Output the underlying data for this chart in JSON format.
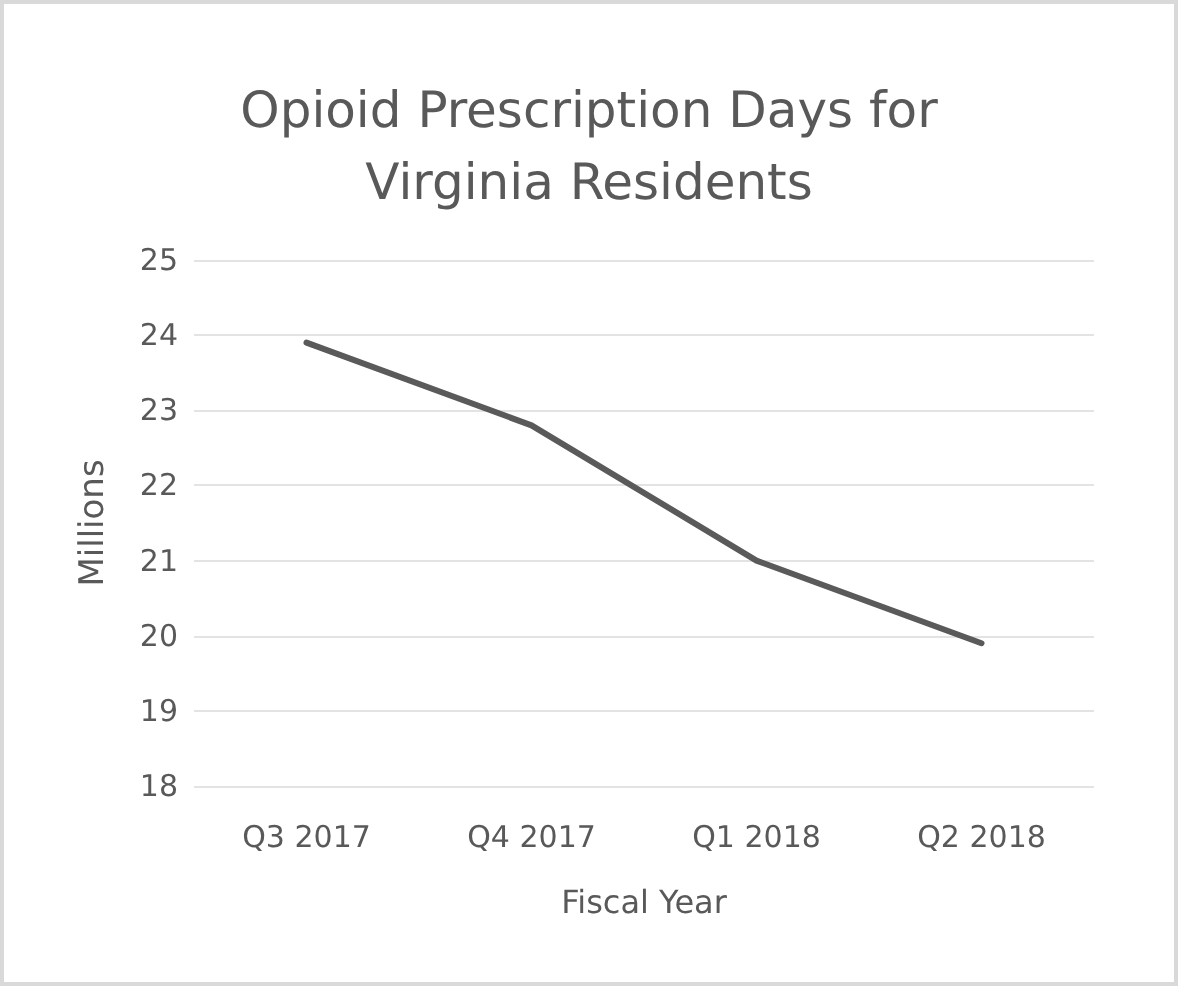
{
  "chart_data": {
    "type": "line",
    "title": "Opioid Prescription Days for\nVirginia Residents",
    "xlabel": "Fiscal Year",
    "ylabel": "Millions",
    "categories": [
      "Q3 2017",
      "Q4 2017",
      "Q1 2018",
      "Q2 2018"
    ],
    "series": [
      {
        "color": "#5a5a5a",
        "values": [
          23.9,
          22.8,
          21.0,
          19.9
        ]
      }
    ],
    "ylim": [
      18,
      25
    ],
    "yticks": [
      18,
      19,
      20,
      21,
      22,
      23,
      24,
      25
    ],
    "grid": "y",
    "marker": "none",
    "line_style": "solid"
  }
}
